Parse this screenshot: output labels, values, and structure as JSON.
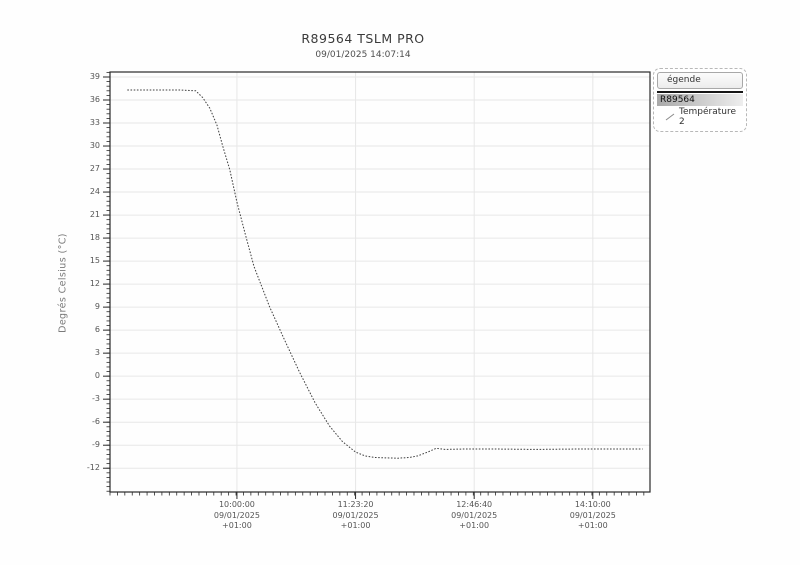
{
  "chart": {
    "title": "R89564 TSLM PRO",
    "subtitle": "09/01/2025 14:07:14",
    "ylabel": "Degrés Celsius (°C)"
  },
  "legend": {
    "header": "égende",
    "device": "R89564",
    "series_label": "Température 2"
  },
  "chart_data": {
    "type": "line",
    "title": "R89564 TSLM PRO",
    "subtitle": "09/01/2025 14:07:14",
    "xlabel": "",
    "ylabel": "Degrés Celsius (°C)",
    "grid": true,
    "legend_position": "right",
    "line_color": "#3f3f3f",
    "grid_color": "#e7e7e7",
    "frame_color": "#2a2a2a",
    "tick_color": "#2a2a2a",
    "ylim": [
      -15.1,
      39.65
    ],
    "xlim_seconds": [
      30650,
      53410
    ],
    "yticks": [
      39,
      36,
      33,
      30,
      27,
      24,
      21,
      18,
      15,
      12,
      9,
      6,
      3,
      0,
      -3,
      -6,
      -9,
      -12
    ],
    "y_minor_step": 0.6,
    "x_minor_step_seconds": 312.5,
    "xticks": [
      {
        "t": 36000,
        "time": "10:00:00",
        "date": "09/01/2025",
        "tz": "+01:00"
      },
      {
        "t": 41000,
        "time": "11:23:20",
        "date": "09/01/2025",
        "tz": "+01:00"
      },
      {
        "t": 46000,
        "time": "12:46:40",
        "date": "09/01/2025",
        "tz": "+01:00"
      },
      {
        "t": 51000,
        "time": "14:10:00",
        "date": "09/01/2025",
        "tz": "+01:00"
      }
    ],
    "point_format": [
      "seconds_since_midnight",
      "deg_C"
    ],
    "series": [
      {
        "name": "Température 2",
        "points": [
          [
            31380,
            37.3
          ],
          [
            32400,
            37.3
          ],
          [
            33600,
            37.3
          ],
          [
            34260,
            37.2
          ],
          [
            34560,
            36.3
          ],
          [
            34860,
            34.9
          ],
          [
            35160,
            32.7
          ],
          [
            35400,
            30.0
          ],
          [
            35700,
            26.9
          ],
          [
            36000,
            22.7
          ],
          [
            36360,
            18.4
          ],
          [
            36720,
            14.3
          ],
          [
            37380,
            9.0
          ],
          [
            38040,
            4.5
          ],
          [
            38640,
            0.5
          ],
          [
            39300,
            -3.5
          ],
          [
            39900,
            -6.5
          ],
          [
            40440,
            -8.5
          ],
          [
            41000,
            -9.9
          ],
          [
            41400,
            -10.4
          ],
          [
            41820,
            -10.6
          ],
          [
            42300,
            -10.65
          ],
          [
            42780,
            -10.7
          ],
          [
            43260,
            -10.6
          ],
          [
            43620,
            -10.4
          ],
          [
            44040,
            -9.9
          ],
          [
            44400,
            -9.4
          ],
          [
            44760,
            -9.55
          ],
          [
            45600,
            -9.5
          ],
          [
            46800,
            -9.5
          ],
          [
            48600,
            -9.55
          ],
          [
            50400,
            -9.5
          ],
          [
            52200,
            -9.5
          ],
          [
            53100,
            -9.5
          ]
        ]
      }
    ]
  }
}
